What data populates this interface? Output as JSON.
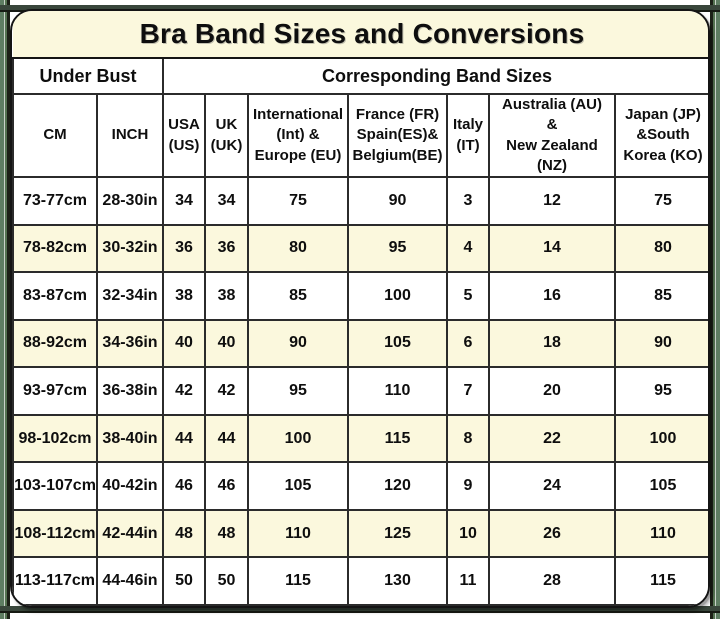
{
  "colors": {
    "cream_accent": "#FBF8DD",
    "border_dark": "#141414",
    "grid_line": "#2b2b2b",
    "frame_green": "#5E7D62",
    "frame_dark": "#1C2017"
  },
  "chart_data": {
    "type": "table",
    "title": "Bra Band Sizes and Conversions",
    "group_headers": {
      "under_bust": "Under Bust",
      "band_sizes": "Corresponding Band Sizes"
    },
    "columns": [
      {
        "key": "cm",
        "label": "CM"
      },
      {
        "key": "inch",
        "label": "INCH"
      },
      {
        "key": "us",
        "label": "USA\n(US)"
      },
      {
        "key": "uk",
        "label": "UK\n(UK)"
      },
      {
        "key": "eu",
        "label": "International\n(Int) &\nEurope (EU)"
      },
      {
        "key": "fr",
        "label": "France (FR)\nSpain(ES)&\nBelgium(BE)"
      },
      {
        "key": "it",
        "label": "Italy\n(IT)"
      },
      {
        "key": "nz",
        "label": "Australia (AU)\n&\nNew Zealand\n(NZ)"
      },
      {
        "key": "jp",
        "label": "Japan (JP)\n&South\nKorea (KO)"
      }
    ],
    "rows": [
      [
        "73-77cm",
        "28-30in",
        "34",
        "34",
        "75",
        "90",
        "3",
        "12",
        "75"
      ],
      [
        "78-82cm",
        "30-32in",
        "36",
        "36",
        "80",
        "95",
        "4",
        "14",
        "80"
      ],
      [
        "83-87cm",
        "32-34in",
        "38",
        "38",
        "85",
        "100",
        "5",
        "16",
        "85"
      ],
      [
        "88-92cm",
        "34-36in",
        "40",
        "40",
        "90",
        "105",
        "6",
        "18",
        "90"
      ],
      [
        "93-97cm",
        "36-38in",
        "42",
        "42",
        "95",
        "110",
        "7",
        "20",
        "95"
      ],
      [
        "98-102cm",
        "38-40in",
        "44",
        "44",
        "100",
        "115",
        "8",
        "22",
        "100"
      ],
      [
        "103-107cm",
        "40-42in",
        "46",
        "46",
        "105",
        "120",
        "9",
        "24",
        "105"
      ],
      [
        "108-112cm",
        "42-44in",
        "48",
        "48",
        "110",
        "125",
        "10",
        "26",
        "110"
      ],
      [
        "113-117cm",
        "44-46in",
        "50",
        "50",
        "115",
        "130",
        "11",
        "28",
        "115"
      ]
    ]
  }
}
